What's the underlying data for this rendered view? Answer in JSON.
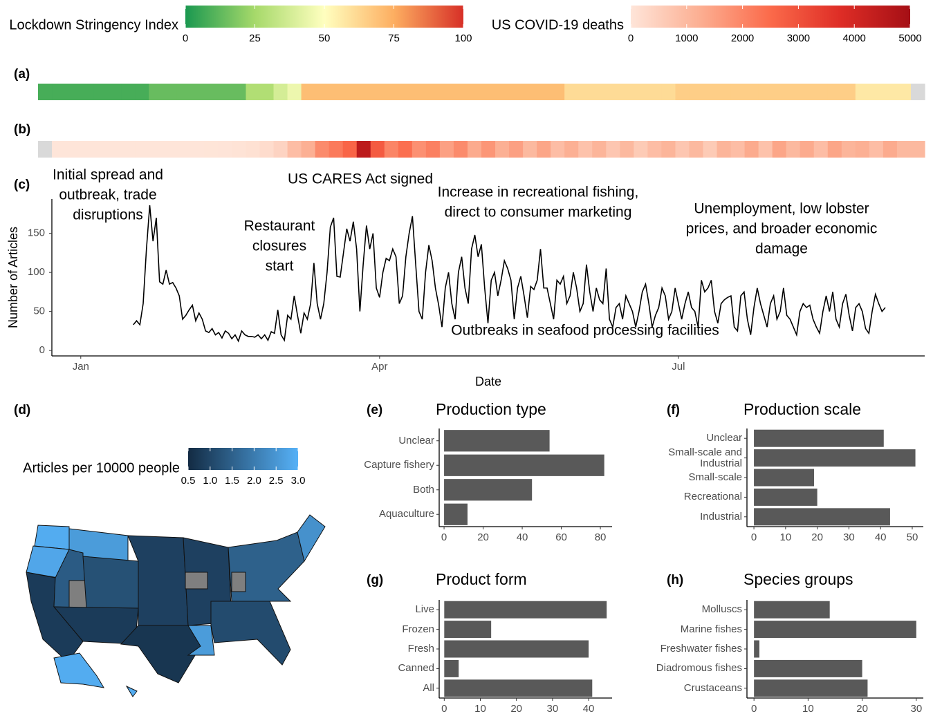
{
  "chart_data": [
    {
      "type": "heatstrip",
      "label": "(a)",
      "legend_title": "Lockdown Stringency Index",
      "lim": [
        0,
        100
      ],
      "ticks": [
        0,
        25,
        50,
        75,
        100
      ],
      "colors": [
        "#1a9850",
        "#a6d96a",
        "#ffffbf",
        "#fdae61",
        "#d73027"
      ],
      "null_color": "#d9d9d9",
      "values": [
        8,
        8,
        8,
        8,
        8,
        8,
        8,
        8,
        14,
        14,
        14,
        14,
        14,
        14,
        14,
        28,
        28,
        38,
        45,
        70,
        70,
        70,
        70,
        70,
        70,
        70,
        70,
        70,
        70,
        70,
        70,
        70,
        70,
        70,
        70,
        70,
        70,
        70,
        61,
        61,
        61,
        61,
        61,
        61,
        61,
        61,
        65,
        65,
        65,
        65,
        65,
        65,
        65,
        65,
        65,
        65,
        65,
        65,
        65,
        57,
        57,
        57,
        57,
        null
      ]
    },
    {
      "type": "heatstrip",
      "label": "(b)",
      "legend_title": "US COVID-19 deaths",
      "lim": [
        0,
        5000
      ],
      "ticks": [
        0,
        1000,
        2000,
        3000,
        4000,
        5000
      ],
      "colors": [
        "#fee5d9",
        "#fcae91",
        "#fb6a4a",
        "#de2d26",
        "#a50f15"
      ],
      "null_color": "#d9d9d9",
      "values": [
        null,
        0,
        0,
        0,
        0,
        0,
        0,
        0,
        0,
        0,
        0,
        5,
        10,
        20,
        50,
        100,
        200,
        400,
        900,
        1200,
        1900,
        2200,
        2600,
        4500,
        2800,
        2000,
        2400,
        1800,
        2100,
        1500,
        1900,
        1300,
        1700,
        1200,
        1500,
        1000,
        1400,
        900,
        1200,
        800,
        1100,
        700,
        1000,
        600,
        900,
        1100,
        700,
        1000,
        600,
        1100,
        900,
        1300,
        800,
        1400,
        1000,
        1300,
        900,
        1400,
        1100,
        1200,
        900,
        1300,
        1000,
        1000
      ]
    },
    {
      "type": "line",
      "label": "(c)",
      "xlabel": "Date",
      "ylabel": "Number of Articles",
      "color": "#000000",
      "xlim": [
        -7.8,
        258
      ],
      "ylim": [
        -7,
        194
      ],
      "yticks": [
        0,
        50,
        100,
        150
      ],
      "xticks": [
        {
          "value": 1,
          "label": "Jan"
        },
        {
          "value": 92,
          "label": "Apr"
        },
        {
          "value": 183,
          "label": "Jul"
        }
      ],
      "annotations": [
        [
          "Initial spread and",
          "outbreak, trade",
          "disruptions"
        ],
        [
          "US CARES Act signed"
        ],
        [
          "Restaurant",
          "closures",
          "start"
        ],
        [
          "Increase in recreational fishing,",
          "direct to consumer marketing"
        ],
        [
          "Unemployment, low lobster",
          "prices, and broader economic",
          "damage"
        ],
        [
          "Outbreaks in seafood processing facilities"
        ]
      ],
      "x": [
        17,
        18,
        19,
        20,
        21,
        22,
        23,
        24,
        25,
        26,
        27,
        28,
        29,
        30,
        31,
        32,
        33,
        34,
        35,
        36,
        37,
        38,
        39,
        40,
        41,
        42,
        43,
        44,
        45,
        46,
        47,
        48,
        49,
        50,
        51,
        52,
        53,
        54,
        55,
        56,
        57,
        58,
        59,
        60,
        61,
        62,
        63,
        64,
        65,
        66,
        67,
        68,
        69,
        70,
        71,
        72,
        73,
        74,
        75,
        76,
        77,
        78,
        79,
        80,
        81,
        82,
        83,
        84,
        85,
        86,
        87,
        88,
        89,
        90,
        91,
        92,
        93,
        94,
        95,
        96,
        97,
        98,
        99,
        100,
        101,
        102,
        103,
        104,
        105,
        106,
        107,
        108,
        109,
        110,
        111,
        112,
        113,
        114,
        115,
        116,
        117,
        118,
        119,
        120,
        121,
        122,
        123,
        124,
        125,
        126,
        127,
        128,
        129,
        130,
        131,
        132,
        133,
        134,
        135,
        136,
        137,
        138,
        139,
        140,
        141,
        142,
        143,
        144,
        145,
        146,
        147,
        148,
        149,
        150,
        151,
        152,
        153,
        154,
        155,
        156,
        157,
        158,
        159,
        160,
        161,
        162,
        163,
        164,
        165,
        166,
        167,
        168,
        169,
        170,
        171,
        172,
        173,
        174,
        175,
        176,
        177,
        178,
        179,
        180,
        181,
        182,
        183,
        184,
        185,
        186,
        187,
        188,
        189,
        190,
        191,
        192,
        193,
        194,
        195,
        196,
        197,
        198,
        199,
        200,
        201,
        202,
        203,
        204,
        205,
        206,
        207,
        208,
        209,
        210,
        211,
        212,
        213,
        214,
        215,
        216,
        217,
        218,
        219,
        220,
        221,
        222,
        223,
        224,
        225,
        226,
        227,
        228,
        229,
        230,
        231,
        232,
        233,
        234,
        235,
        236,
        237,
        238,
        239,
        240,
        241,
        242,
        243,
        244,
        245,
        246
      ],
      "values": [
        33,
        38,
        33,
        60,
        130,
        186,
        140,
        170,
        88,
        85,
        103,
        85,
        87,
        80,
        70,
        40,
        45,
        52,
        58,
        38,
        48,
        40,
        25,
        23,
        28,
        20,
        23,
        16,
        25,
        22,
        15,
        20,
        12,
        25,
        20,
        18,
        18,
        17,
        20,
        15,
        20,
        13,
        24,
        22,
        52,
        20,
        13,
        45,
        40,
        70,
        45,
        22,
        48,
        40,
        60,
        112,
        60,
        40,
        60,
        100,
        158,
        170,
        95,
        94,
        125,
        156,
        140,
        165,
        130,
        50,
        110,
        160,
        130,
        150,
        80,
        68,
        100,
        118,
        115,
        130,
        120,
        60,
        70,
        120,
        150,
        172,
        110,
        50,
        40,
        100,
        135,
        115,
        80,
        58,
        30,
        80,
        100,
        60,
        40,
        100,
        120,
        80,
        60,
        130,
        148,
        120,
        136,
        80,
        35,
        90,
        100,
        70,
        90,
        115,
        105,
        90,
        40,
        80,
        95,
        70,
        42,
        82,
        78,
        90,
        130,
        80,
        80,
        60,
        40,
        90,
        85,
        95,
        60,
        70,
        100,
        80,
        50,
        60,
        110,
        75,
        50,
        80,
        65,
        60,
        105,
        40,
        30,
        55,
        60,
        40,
        70,
        60,
        50,
        30,
        50,
        75,
        85,
        60,
        30,
        45,
        55,
        80,
        70,
        40,
        50,
        80,
        60,
        40,
        60,
        75,
        55,
        50,
        30,
        90,
        75,
        80,
        90,
        50,
        35,
        60,
        65,
        68,
        70,
        30,
        25,
        70,
        75,
        40,
        20,
        55,
        80,
        60,
        45,
        30,
        60,
        70,
        40,
        50,
        80,
        45,
        40,
        30,
        20,
        50,
        60,
        55,
        58,
        40,
        30,
        22,
        50,
        70,
        50,
        75,
        40,
        30,
        60,
        72,
        45,
        25,
        55,
        60,
        50,
        28,
        22,
        50,
        72,
        60,
        50,
        55
      ]
    },
    {
      "type": "choropleth",
      "label": "(d)",
      "legend_title": "Articles per 10000 people",
      "lim": [
        0.5,
        3.0
      ],
      "ticks": [
        0.5,
        {
          "value": 1,
          "label": "1.0"
        },
        1.5,
        {
          "value": 2,
          "label": "2.0"
        },
        2.5,
        {
          "value": 3,
          "label": "3.0"
        }
      ],
      "colors": [
        "#132B43",
        "#56B1F7"
      ],
      "null_color": "#7f7f7f",
      "values": [
        2.9,
        2.8,
        0.8,
        1.4,
        null,
        2.6,
        1.2,
        0.8,
        0.9,
        0.7,
        0.9,
        null,
        2.6,
        1.1,
        1.5,
        null,
        2.4,
        2.9,
        2.9
      ]
    },
    {
      "type": "hbar",
      "label": "(e)",
      "title": "Production type",
      "color": "#595959",
      "categories": [
        "Unclear",
        "Capture fishery",
        "Both",
        "Aquaculture"
      ],
      "values": [
        54,
        82,
        45,
        12
      ],
      "xlim": [
        -2.5,
        86
      ],
      "xticks": [
        0,
        20,
        40,
        60,
        80
      ]
    },
    {
      "type": "hbar",
      "label": "(f)",
      "title": "Production scale",
      "color": "#595959",
      "categories": [
        "Unclear",
        "Small-scale and Industrial",
        "Small-scale",
        "Recreational",
        "Industrial"
      ],
      "values": [
        41,
        51,
        19,
        20,
        43
      ],
      "xlim": [
        -2.2,
        53.5
      ],
      "xticks": [
        0,
        10,
        20,
        30,
        40,
        50
      ]
    },
    {
      "type": "hbar",
      "label": "(g)",
      "title": "Product form",
      "color": "#595959",
      "categories": [
        "Live",
        "Frozen",
        "Fresh",
        "Canned",
        "All"
      ],
      "values": [
        45,
        13,
        40,
        4,
        41
      ],
      "xlim": [
        -1.4,
        46.5
      ],
      "xticks": [
        0,
        10,
        20,
        30,
        40
      ]
    },
    {
      "type": "hbar",
      "label": "(h)",
      "title": "Species groups",
      "color": "#595959",
      "categories": [
        "Molluscs",
        "Marine fishes",
        "Freshwater fishes",
        "Diadromous fishes",
        "Crustaceans"
      ],
      "values": [
        14,
        30,
        1,
        20,
        21
      ],
      "xlim": [
        -1.3,
        31.3
      ],
      "xticks": [
        0,
        10,
        20,
        30
      ]
    }
  ]
}
